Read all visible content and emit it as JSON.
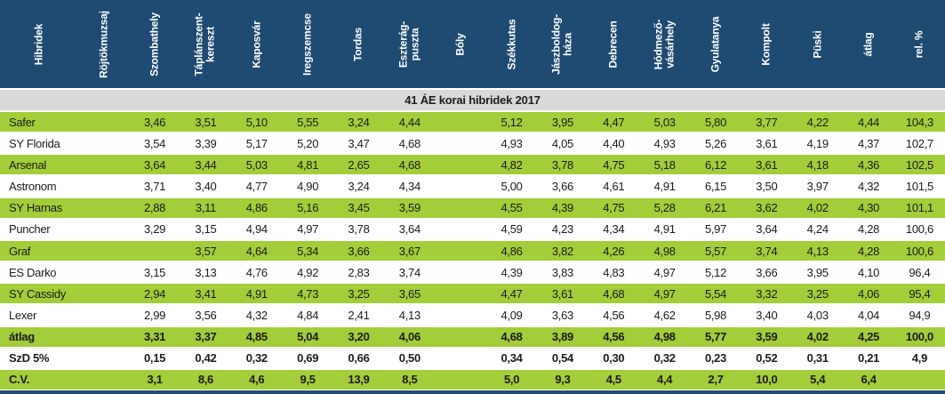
{
  "title_band": "41  ÁE korai hibridek 2017",
  "colors": {
    "header_bg": "#1f4a72",
    "green_row": "#a3cd39",
    "subheader_bg": "#d9d9d9",
    "header_text": "#ffffff",
    "body_text": "#1c1c1c"
  },
  "columns": [
    {
      "key": "hibridek",
      "label": "Hibridek"
    },
    {
      "key": "rojtokmuzsaj",
      "label": "Röjtökmuzsaj"
    },
    {
      "key": "szombathely",
      "label": "Szombathely"
    },
    {
      "key": "taplanszentkereszt",
      "label": "Táplánszent-\nkereszt"
    },
    {
      "key": "kaposvar",
      "label": "Kaposvár"
    },
    {
      "key": "iregszemcse",
      "label": "Iregszemcse"
    },
    {
      "key": "tordas",
      "label": "Tordas"
    },
    {
      "key": "eszteragpuszta",
      "label": "Eszterág-\npuszta"
    },
    {
      "key": "boly",
      "label": "Bóly"
    },
    {
      "key": "szekkutas",
      "label": "Székkutas"
    },
    {
      "key": "jaszboldoghaza",
      "label": "Jászboldog-\nháza"
    },
    {
      "key": "debrecen",
      "label": "Debrecen"
    },
    {
      "key": "hodmezovasarhely",
      "label": "Hódmező-\nvásárhely"
    },
    {
      "key": "gyulatanya",
      "label": "Gyulatanya"
    },
    {
      "key": "kompolt",
      "label": "Kompolt"
    },
    {
      "key": "puski",
      "label": "Püski"
    },
    {
      "key": "atlag",
      "label": "átlag"
    },
    {
      "key": "rel_pct",
      "label": "rel. %"
    }
  ],
  "rows": [
    {
      "name": "Safer",
      "bold": false,
      "green": true,
      "values": [
        "",
        "3,46",
        "3,51",
        "5,10",
        "5,55",
        "3,24",
        "4,44",
        "",
        "5,12",
        "3,95",
        "4,47",
        "5,03",
        "5,80",
        "3,77",
        "4,22",
        "4,44",
        "104,3"
      ]
    },
    {
      "name": "SY Florida",
      "bold": false,
      "green": false,
      "values": [
        "",
        "3,54",
        "3,39",
        "5,17",
        "5,20",
        "3,47",
        "4,68",
        "",
        "4,93",
        "4,05",
        "4,40",
        "4,93",
        "5,26",
        "3,61",
        "4,19",
        "4,37",
        "102,7"
      ]
    },
    {
      "name": "Arsenal",
      "bold": false,
      "green": true,
      "values": [
        "",
        "3,64",
        "3,44",
        "5,03",
        "4,81",
        "2,65",
        "4,68",
        "",
        "4,82",
        "3,78",
        "4,75",
        "5,18",
        "6,12",
        "3,61",
        "4,18",
        "4,36",
        "102,5"
      ]
    },
    {
      "name": "Astronom",
      "bold": false,
      "green": false,
      "values": [
        "",
        "3,71",
        "3,40",
        "4,77",
        "4,90",
        "3,24",
        "4,34",
        "",
        "5,00",
        "3,66",
        "4,61",
        "4,91",
        "6,15",
        "3,50",
        "3,97",
        "4,32",
        "101,5"
      ]
    },
    {
      "name": "SY Harnas",
      "bold": false,
      "green": true,
      "values": [
        "",
        "2,88",
        "3,11",
        "4,86",
        "5,16",
        "3,45",
        "3,59",
        "",
        "4,55",
        "4,39",
        "4,75",
        "5,28",
        "6,21",
        "3,62",
        "4,02",
        "4,30",
        "101,1"
      ]
    },
    {
      "name": "Puncher",
      "bold": false,
      "green": false,
      "values": [
        "",
        "3,29",
        "3,15",
        "4,94",
        "4,97",
        "3,78",
        "3,64",
        "",
        "4,59",
        "4,23",
        "4,34",
        "4,91",
        "5,97",
        "3,64",
        "4,24",
        "4,28",
        "100,6"
      ]
    },
    {
      "name": "Graf",
      "bold": false,
      "green": true,
      "values": [
        "",
        "",
        "3,57",
        "4,64",
        "5,34",
        "3,66",
        "3,67",
        "",
        "4,86",
        "3,82",
        "4,26",
        "4,98",
        "5,57",
        "3,74",
        "4,13",
        "4,28",
        "100,6"
      ]
    },
    {
      "name": "ES Darko",
      "bold": false,
      "green": false,
      "values": [
        "",
        "3,15",
        "3,13",
        "4,76",
        "4,92",
        "2,83",
        "3,74",
        "",
        "4,39",
        "3,83",
        "4,83",
        "4,97",
        "5,12",
        "3,66",
        "3,95",
        "4,10",
        "96,4"
      ]
    },
    {
      "name": "SY Cassidy",
      "bold": false,
      "green": true,
      "values": [
        "",
        "2,94",
        "3,41",
        "4,91",
        "4,73",
        "3,25",
        "3,65",
        "",
        "4,47",
        "3,61",
        "4,68",
        "4,97",
        "5,54",
        "3,32",
        "3,25",
        "4,06",
        "95,4"
      ]
    },
    {
      "name": "Lexer",
      "bold": false,
      "green": false,
      "values": [
        "",
        "2,99",
        "3,56",
        "4,32",
        "4,84",
        "2,41",
        "4,13",
        "",
        "4,09",
        "3,63",
        "4,56",
        "4,62",
        "5,98",
        "3,40",
        "4,03",
        "4,04",
        "94,9"
      ]
    },
    {
      "name": "átlag",
      "bold": true,
      "green": true,
      "values": [
        "",
        "3,31",
        "3,37",
        "4,85",
        "5,04",
        "3,20",
        "4,06",
        "",
        "4,68",
        "3,89",
        "4,56",
        "4,98",
        "5,77",
        "3,59",
        "4,02",
        "4,25",
        "100,0"
      ]
    },
    {
      "name": "SzD 5%",
      "bold": true,
      "green": false,
      "values": [
        "",
        "0,15",
        "0,42",
        "0,32",
        "0,69",
        "0,66",
        "0,50",
        "",
        "0,34",
        "0,54",
        "0,30",
        "0,32",
        "0,23",
        "0,52",
        "0,31",
        "0,21",
        "4,9"
      ]
    },
    {
      "name": "C.V.",
      "bold": true,
      "green": true,
      "values": [
        "",
        "3,1",
        "8,6",
        "4,6",
        "9,5",
        "13,9",
        "8,5",
        "",
        "5,0",
        "9,3",
        "4,5",
        "4,4",
        "2,7",
        "10,0",
        "5,4",
        "6,4",
        ""
      ]
    }
  ]
}
